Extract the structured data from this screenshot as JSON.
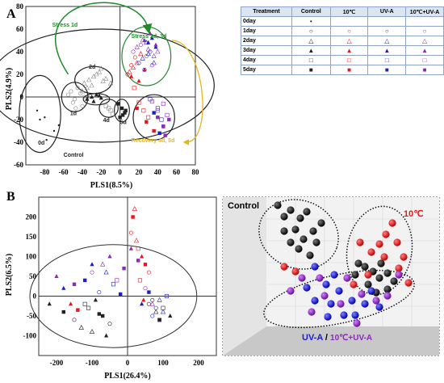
{
  "panel_a": {
    "label": "A",
    "chart_data": {
      "type": "scatter",
      "xlabel": "PLS1(8.5%)",
      "ylabel": "PLS2(4.9%)",
      "xlim": [
        -100,
        80
      ],
      "ylim": [
        -60,
        80
      ],
      "xticks": [
        "-80",
        "-60",
        "-40",
        "-20",
        "0",
        "20",
        "40",
        "60",
        "80"
      ],
      "yticks": [
        "80",
        "60",
        "40",
        "20",
        "0",
        "-20",
        "-40",
        "-60"
      ],
      "annotations": [
        "Stress 1d",
        "Stress 2d, 3d",
        "Recovery 4d, 5d",
        "Control",
        "0d",
        "1d",
        "2d",
        "4d",
        "5d"
      ],
      "colors": {
        "control": "#222222",
        "10c": "#e8141e",
        "uva": "#1d1dcc",
        "10c_uva": "#8b2ab8",
        "stress_arrow": "#1e8a2a",
        "recovery_arrow": "#e6b51e"
      },
      "series": [
        {
          "name": "0day",
          "color": "#222222",
          "marker": "dot",
          "x": [
            -88,
            -85,
            -80,
            -78,
            -70,
            -65
          ],
          "y": [
            -12,
            -20,
            -18,
            -38,
            -30,
            -25
          ]
        },
        {
          "name": "1day",
          "color": "#888888",
          "marker": "circle",
          "x": [
            -55,
            -52,
            -48,
            -45,
            -50,
            -42,
            -40,
            -47,
            -38
          ],
          "y": [
            2,
            5,
            -2,
            8,
            -5,
            3,
            -8,
            -10,
            0
          ]
        },
        {
          "name": "2day",
          "color": "#888888",
          "marker": "triangle-open",
          "x": [
            -38,
            -33,
            -28,
            -22,
            -18,
            -30,
            -35,
            -25,
            -15,
            -10,
            -20,
            -40
          ],
          "y": [
            12,
            15,
            18,
            22,
            14,
            10,
            8,
            20,
            16,
            12,
            25,
            5
          ]
        },
        {
          "name": "3day",
          "color": "#222222",
          "marker": "triangle",
          "x": [
            -35,
            -30,
            -25,
            -20,
            -28,
            -22
          ],
          "y": [
            -2,
            0,
            2,
            -1,
            -4,
            1
          ]
        },
        {
          "name": "4day",
          "color": "#888888",
          "marker": "square-open",
          "x": [
            -15,
            -10,
            -8,
            -12
          ],
          "y": [
            -8,
            -12,
            -15,
            -10
          ]
        },
        {
          "name": "5day",
          "color": "#222222",
          "marker": "square",
          "x": [
            -2,
            2,
            5,
            0,
            3,
            6
          ],
          "y": [
            -6,
            -10,
            -14,
            -18,
            -16,
            -12
          ]
        },
        {
          "name": "10c 1day",
          "color": "#e8141e",
          "marker": "circle",
          "x": [
            8,
            12,
            16
          ],
          "y": [
            20,
            28,
            35
          ]
        },
        {
          "name": "10c 2day",
          "color": "#e8141e",
          "marker": "triangle-open",
          "x": [
            10,
            14,
            18,
            22
          ],
          "y": [
            22,
            26,
            30,
            38
          ]
        },
        {
          "name": "10c 3day",
          "color": "#e8141e",
          "marker": "triangle",
          "x": [
            12,
            20,
            26
          ],
          "y": [
            18,
            14,
            24
          ]
        },
        {
          "name": "10c 4day",
          "color": "#e8141e",
          "marker": "square-open",
          "x": [
            20,
            25,
            30,
            15
          ],
          "y": [
            -5,
            -12,
            -18,
            8
          ]
        },
        {
          "name": "10c 5day",
          "color": "#e8141e",
          "marker": "square",
          "x": [
            18,
            28,
            36
          ],
          "y": [
            -10,
            -22,
            -30
          ]
        },
        {
          "name": "UV-A 1day",
          "color": "#1d1dcc",
          "marker": "circle",
          "x": [
            20,
            26,
            32
          ],
          "y": [
            30,
            24,
            40
          ]
        },
        {
          "name": "UV-A 2day",
          "color": "#1d1dcc",
          "marker": "triangle-open",
          "x": [
            24,
            30,
            36,
            28
          ],
          "y": [
            34,
            38,
            30,
            48
          ]
        },
        {
          "name": "UV-A 3day",
          "color": "#1d1dcc",
          "marker": "triangle",
          "x": [
            30,
            38,
            34
          ],
          "y": [
            48,
            44,
            52
          ]
        },
        {
          "name": "UV-A 4day",
          "color": "#1d1dcc",
          "marker": "square-open",
          "x": [
            32,
            40,
            44
          ],
          "y": [
            -2,
            -10,
            -20
          ]
        },
        {
          "name": "UV-A 5day",
          "color": "#1d1dcc",
          "marker": "square",
          "x": [
            36,
            46,
            42
          ],
          "y": [
            -14,
            -26,
            -32
          ]
        },
        {
          "name": "10C+UV-A 1day",
          "color": "#8b2ab8",
          "marker": "circle",
          "x": [
            14,
            22,
            28,
            34
          ],
          "y": [
            40,
            46,
            36,
            28
          ]
        },
        {
          "name": "10C+UV-A 2day",
          "color": "#8b2ab8",
          "marker": "triangle-open",
          "x": [
            18,
            24,
            30,
            36,
            40
          ],
          "y": [
            44,
            50,
            42,
            36,
            40
          ]
        },
        {
          "name": "10C+UV-A 3day",
          "color": "#8b2ab8",
          "marker": "triangle",
          "x": [
            26,
            32,
            38
          ],
          "y": [
            50,
            56,
            46
          ]
        },
        {
          "name": "10C+UV-A 4day",
          "color": "#8b2ab8",
          "marker": "square-open",
          "x": [
            34,
            40,
            46,
            50
          ],
          "y": [
            -4,
            -12,
            -6,
            -16
          ]
        },
        {
          "name": "10C+UV-A 5day",
          "color": "#8b2ab8",
          "marker": "square",
          "x": [
            40,
            46,
            52,
            48
          ],
          "y": [
            -18,
            -26,
            -20,
            -34
          ]
        }
      ]
    },
    "legend": {
      "header": [
        "Treatment",
        "Control",
        "10℃",
        "UV-A",
        "10℃+UV-A"
      ],
      "rows": [
        {
          "label": "0day",
          "symbols": [
            "•",
            "",
            "",
            ""
          ]
        },
        {
          "label": "1day",
          "symbols": [
            "○",
            "○",
            "○",
            "○"
          ]
        },
        {
          "label": "2day",
          "symbols": [
            "△",
            "△",
            "△",
            "△"
          ]
        },
        {
          "label": "3day",
          "symbols": [
            "▲",
            "▲",
            "▲",
            "▲"
          ]
        },
        {
          "label": "4day",
          "symbols": [
            "□",
            "□",
            "□",
            "□"
          ]
        },
        {
          "label": "5day",
          "symbols": [
            "■",
            "■",
            "■",
            "■"
          ]
        }
      ],
      "colors": [
        "#222222",
        "#e8141e",
        "#1d1dcc",
        "#8b2ab8"
      ]
    }
  },
  "panel_b": {
    "label": "B",
    "chart_data": {
      "type": "scatter",
      "xlabel": "PLS1(26.4%)",
      "ylabel": "PLS2(6.5%)",
      "xlim": [
        -250,
        250
      ],
      "ylim": [
        -150,
        250
      ],
      "xticks": [
        "-200",
        "-100",
        "0",
        "100",
        "200"
      ],
      "yticks": [
        "200",
        "150",
        "100",
        "50",
        "0",
        "-50",
        "-100"
      ],
      "series": [
        {
          "name": "Control",
          "color": "#222222",
          "x": [
            -220,
            -180,
            -150,
            -130,
            -110,
            -90,
            -70,
            -50,
            -100,
            -120,
            -60,
            -80,
            60,
            80,
            100,
            120,
            90,
            70
          ],
          "y": [
            -20,
            -40,
            -60,
            -80,
            -30,
            -10,
            -50,
            -70,
            -90,
            -20,
            -100,
            -45,
            -20,
            -40,
            -30,
            -50,
            -60,
            -10
          ]
        },
        {
          "name": "10℃",
          "color": "#e8141e",
          "x": [
            -160,
            -140,
            10,
            20,
            30,
            40,
            50,
            60,
            25,
            35,
            45,
            15
          ],
          "y": [
            -20,
            -35,
            160,
            220,
            120,
            100,
            80,
            60,
            140,
            40,
            -10,
            200
          ]
        },
        {
          "name": "UV-A",
          "color": "#1d1dcc",
          "x": [
            -180,
            -120,
            -80,
            -60,
            -40,
            40,
            60,
            80,
            100,
            110,
            -100,
            -20,
            70,
            90
          ],
          "y": [
            20,
            40,
            10,
            60,
            30,
            -20,
            10,
            -30,
            -40,
            0,
            80,
            5,
            -50,
            -10
          ]
        },
        {
          "name": "10℃+UV-A",
          "color": "#8b2ab8",
          "x": [
            -200,
            -150,
            -100,
            -70,
            -30,
            10,
            30,
            50,
            70,
            90,
            -50,
            -10
          ],
          "y": [
            50,
            30,
            60,
            80,
            40,
            120,
            90,
            20,
            -20,
            -60,
            100,
            70
          ]
        }
      ]
    },
    "panel_3d": {
      "labels": {
        "control": "Control",
        "ten_c": "10℃",
        "uva": "UV-A",
        "slash": " / ",
        "ten_c_uva": "10℃+UV-A"
      }
    }
  }
}
